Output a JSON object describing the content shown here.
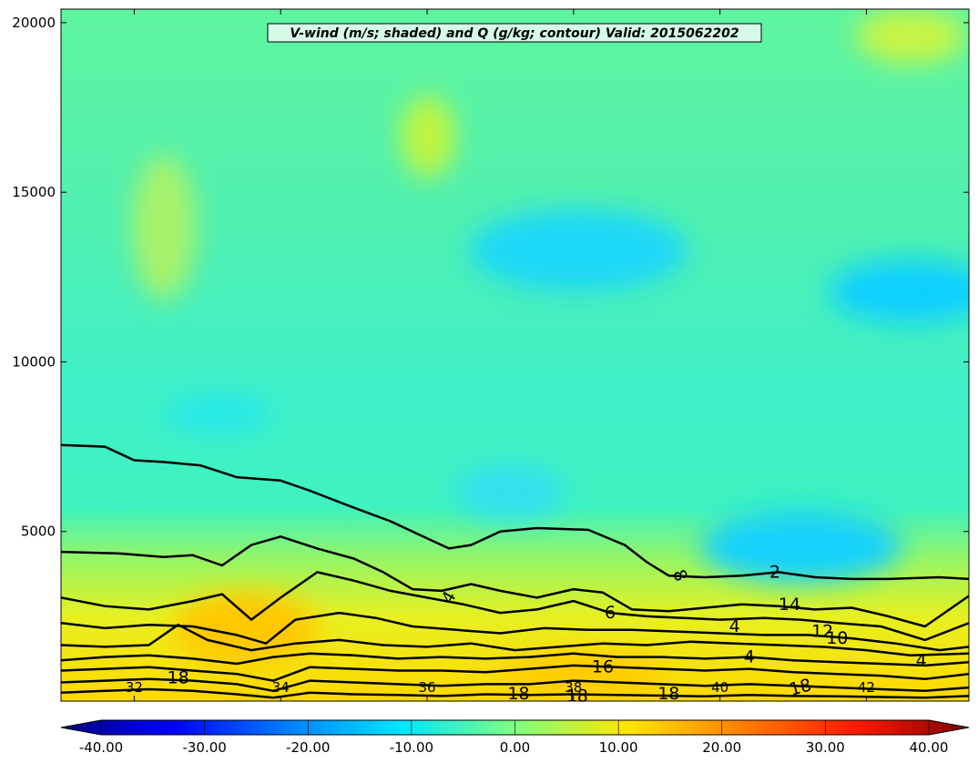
{
  "chart_data": {
    "type": "heatmap",
    "title": "V-wind (m/s; shaded) and Q (g/kg; contour) Valid: 2015062202",
    "xlabel": "",
    "ylabel": "",
    "xlim": [
      31.0,
      43.4
    ],
    "ylim": [
      0,
      20400
    ],
    "x_ticks": [
      "32",
      "34",
      "36",
      "38",
      "40",
      "42"
    ],
    "x_tick_values": [
      32,
      34,
      36,
      38,
      40,
      42
    ],
    "y_ticks": [
      "5000",
      "10000",
      "15000",
      "20000"
    ],
    "y_tick_values": [
      5000,
      10000,
      15000,
      20000
    ],
    "colorbar": {
      "ticks": [
        "-40.00",
        "-30.00",
        "-20.00",
        "-10.00",
        "0.00",
        "10.00",
        "20.00",
        "30.00",
        "40.00"
      ],
      "tick_values": [
        -40,
        -30,
        -20,
        -10,
        0,
        10,
        20,
        30,
        40
      ],
      "range": [
        -44,
        44
      ],
      "colormap": "jet",
      "extend": "both"
    },
    "shaded_field": {
      "name": "V-wind",
      "units": "m/s",
      "regions": [
        {
          "description": "upper troposphere background",
          "value_approx": 0
        },
        {
          "description": "negative pocket near 37-38.5 E, 13000 m",
          "value_approx": -9
        },
        {
          "description": "negative pocket near 43 E, 12000 m",
          "value_approx": -11
        },
        {
          "description": "negative pocket near 40.5 E, 4500 m",
          "value_approx": -10
        },
        {
          "description": "positive low level band below 3000 m",
          "value_approx": 12
        }
      ]
    },
    "contour_field": {
      "name": "Q",
      "units": "g/kg",
      "levels_labeled": [
        {
          "text": "2",
          "value": 2
        },
        {
          "text": "4",
          "value": 4
        },
        {
          "text": "4",
          "value": 4
        },
        {
          "text": "4",
          "value": 4
        },
        {
          "text": "4",
          "value": 4
        },
        {
          "text": "6",
          "value": 6
        },
        {
          "text": "8",
          "value": 8
        },
        {
          "text": "10",
          "value": 10
        },
        {
          "text": "12",
          "value": 12
        },
        {
          "text": "14",
          "value": 14
        },
        {
          "text": "16",
          "value": 16
        },
        {
          "text": "18",
          "value": 18
        },
        {
          "text": "18",
          "value": 18
        },
        {
          "text": "18",
          "value": 18
        },
        {
          "text": "18",
          "value": 18
        },
        {
          "text": "18",
          "value": 18
        }
      ],
      "contours": [
        {
          "level": 2,
          "points": [
            [
              31.0,
              7550
            ],
            [
              31.6,
              7500
            ],
            [
              32.0,
              7100
            ],
            [
              32.4,
              7050
            ],
            [
              32.9,
              6950
            ],
            [
              33.4,
              6600
            ],
            [
              34.0,
              6500
            ],
            [
              34.4,
              6200
            ],
            [
              35.0,
              5700
            ],
            [
              35.5,
              5300
            ],
            [
              36.0,
              4800
            ],
            [
              36.3,
              4500
            ],
            [
              36.6,
              4600
            ],
            [
              37.0,
              5000
            ],
            [
              37.5,
              5100
            ],
            [
              38.2,
              5050
            ],
            [
              38.7,
              4600
            ],
            [
              39.0,
              4100
            ],
            [
              39.3,
              3700
            ],
            [
              39.8,
              3650
            ],
            [
              40.3,
              3700
            ],
            [
              40.8,
              3800
            ],
            [
              41.3,
              3650
            ],
            [
              41.8,
              3600
            ],
            [
              42.3,
              3600
            ],
            [
              43.0,
              3650
            ],
            [
              43.4,
              3600
            ]
          ]
        },
        {
          "level": 4,
          "points": [
            [
              31.0,
              4400
            ],
            [
              31.8,
              4350
            ],
            [
              32.4,
              4250
            ],
            [
              32.8,
              4300
            ],
            [
              33.2,
              4000
            ],
            [
              33.6,
              4600
            ],
            [
              34.0,
              4850
            ],
            [
              34.5,
              4500
            ],
            [
              35.0,
              4200
            ],
            [
              35.4,
              3800
            ],
            [
              35.8,
              3300
            ],
            [
              36.2,
              3250
            ],
            [
              36.6,
              3450
            ],
            [
              37.0,
              3250
            ],
            [
              37.5,
              3050
            ],
            [
              38.0,
              3300
            ],
            [
              38.4,
              3200
            ],
            [
              38.8,
              2700
            ],
            [
              39.3,
              2650
            ],
            [
              39.8,
              2750
            ],
            [
              40.3,
              2850
            ],
            [
              40.8,
              2800
            ],
            [
              41.3,
              2700
            ],
            [
              41.8,
              2750
            ],
            [
              42.3,
              2500
            ],
            [
              42.8,
              2200
            ],
            [
              43.4,
              3100
            ]
          ]
        },
        {
          "level": 6,
          "points": [
            [
              31.0,
              3050
            ],
            [
              31.6,
              2800
            ],
            [
              32.2,
              2700
            ],
            [
              32.8,
              2950
            ],
            [
              33.2,
              3150
            ],
            [
              33.6,
              2400
            ],
            [
              34.0,
              3050
            ],
            [
              34.5,
              3800
            ],
            [
              35.0,
              3550
            ],
            [
              35.5,
              3250
            ],
            [
              36.0,
              3050
            ],
            [
              36.5,
              2850
            ],
            [
              37.0,
              2600
            ],
            [
              37.5,
              2700
            ],
            [
              38.0,
              2950
            ],
            [
              38.5,
              2600
            ],
            [
              39.0,
              2500
            ],
            [
              39.5,
              2450
            ],
            [
              40.0,
              2400
            ],
            [
              40.6,
              2450
            ],
            [
              41.1,
              2400
            ],
            [
              41.6,
              2300
            ],
            [
              42.2,
              2200
            ],
            [
              42.8,
              1800
            ],
            [
              43.4,
              2300
            ]
          ]
        },
        {
          "level": 8,
          "points": [
            [
              31.0,
              2300
            ],
            [
              31.6,
              2150
            ],
            [
              32.2,
              2250
            ],
            [
              32.8,
              2200
            ],
            [
              33.4,
              1950
            ],
            [
              33.8,
              1700
            ],
            [
              34.2,
              2400
            ],
            [
              34.8,
              2600
            ],
            [
              35.3,
              2450
            ],
            [
              35.8,
              2200
            ],
            [
              36.4,
              2100
            ],
            [
              37.0,
              2000
            ],
            [
              37.6,
              2150
            ],
            [
              38.2,
              2100
            ],
            [
              38.8,
              2100
            ],
            [
              39.4,
              2050
            ],
            [
              40.0,
              2000
            ],
            [
              40.6,
              1950
            ],
            [
              41.2,
              1950
            ],
            [
              41.8,
              1850
            ],
            [
              42.4,
              1700
            ],
            [
              43.0,
              1500
            ],
            [
              43.4,
              1600
            ]
          ]
        },
        {
          "level": 10,
          "points": [
            [
              31.0,
              1650
            ],
            [
              31.6,
              1600
            ],
            [
              32.2,
              1650
            ],
            [
              32.6,
              2250
            ],
            [
              33.0,
              1800
            ],
            [
              33.6,
              1500
            ],
            [
              34.2,
              1700
            ],
            [
              34.8,
              1800
            ],
            [
              35.4,
              1650
            ],
            [
              36.0,
              1600
            ],
            [
              36.6,
              1700
            ],
            [
              37.2,
              1500
            ],
            [
              37.8,
              1600
            ],
            [
              38.4,
              1700
            ],
            [
              39.0,
              1650
            ],
            [
              39.6,
              1750
            ],
            [
              40.2,
              1700
            ],
            [
              40.8,
              1650
            ],
            [
              41.4,
              1600
            ],
            [
              42.0,
              1500
            ],
            [
              42.6,
              1350
            ],
            [
              43.4,
              1400
            ]
          ]
        },
        {
          "level": 12,
          "points": [
            [
              31.0,
              1200
            ],
            [
              31.6,
              1300
            ],
            [
              32.2,
              1350
            ],
            [
              32.8,
              1250
            ],
            [
              33.4,
              1100
            ],
            [
              33.9,
              1300
            ],
            [
              34.4,
              1400
            ],
            [
              35.0,
              1350
            ],
            [
              35.6,
              1250
            ],
            [
              36.2,
              1300
            ],
            [
              36.8,
              1250
            ],
            [
              37.4,
              1300
            ],
            [
              38.0,
              1400
            ],
            [
              38.6,
              1300
            ],
            [
              39.2,
              1300
            ],
            [
              39.8,
              1250
            ],
            [
              40.4,
              1300
            ],
            [
              41.0,
              1200
            ],
            [
              41.6,
              1150
            ],
            [
              42.2,
              1100
            ],
            [
              42.8,
              1050
            ],
            [
              43.4,
              1150
            ]
          ]
        },
        {
          "level": 14,
          "points": [
            [
              31.0,
              900
            ],
            [
              31.6,
              950
            ],
            [
              32.2,
              1000
            ],
            [
              32.8,
              900
            ],
            [
              33.4,
              800
            ],
            [
              33.9,
              600
            ],
            [
              34.4,
              1000
            ],
            [
              35.0,
              950
            ],
            [
              35.6,
              900
            ],
            [
              36.2,
              900
            ],
            [
              36.8,
              850
            ],
            [
              37.4,
              950
            ],
            [
              38.0,
              1050
            ],
            [
              38.6,
              1000
            ],
            [
              39.2,
              950
            ],
            [
              39.8,
              900
            ],
            [
              40.4,
              950
            ],
            [
              41.0,
              850
            ],
            [
              41.6,
              800
            ],
            [
              42.2,
              750
            ],
            [
              42.8,
              650
            ],
            [
              43.4,
              800
            ]
          ]
        },
        {
          "level": 16,
          "points": [
            [
              31.0,
              550
            ],
            [
              31.6,
              600
            ],
            [
              32.2,
              650
            ],
            [
              32.8,
              600
            ],
            [
              33.4,
              500
            ],
            [
              33.9,
              300
            ],
            [
              34.4,
              600
            ],
            [
              35.0,
              550
            ],
            [
              35.6,
              500
            ],
            [
              36.2,
              450
            ],
            [
              36.8,
              500
            ],
            [
              37.4,
              500
            ],
            [
              38.0,
              600
            ],
            [
              38.6,
              550
            ],
            [
              39.2,
              500
            ],
            [
              39.8,
              450
            ],
            [
              40.4,
              500
            ],
            [
              41.0,
              450
            ],
            [
              41.6,
              400
            ],
            [
              42.2,
              350
            ],
            [
              42.8,
              300
            ],
            [
              43.4,
              400
            ]
          ]
        },
        {
          "level": 18,
          "points": [
            [
              31.0,
              250
            ],
            [
              31.6,
              300
            ],
            [
              32.2,
              350
            ],
            [
              32.8,
              300
            ],
            [
              33.4,
              200
            ],
            [
              33.9,
              100
            ],
            [
              34.4,
              250
            ],
            [
              35.0,
              200
            ],
            [
              35.6,
              180
            ],
            [
              36.2,
              150
            ],
            [
              36.8,
              200
            ],
            [
              37.4,
              180
            ],
            [
              38.0,
              200
            ],
            [
              38.6,
              180
            ],
            [
              39.2,
              160
            ],
            [
              39.8,
              140
            ],
            [
              40.4,
              180
            ],
            [
              41.0,
              150
            ],
            [
              41.6,
              140
            ],
            [
              42.2,
              120
            ],
            [
              42.8,
              100
            ],
            [
              43.4,
              150
            ]
          ]
        }
      ]
    }
  }
}
